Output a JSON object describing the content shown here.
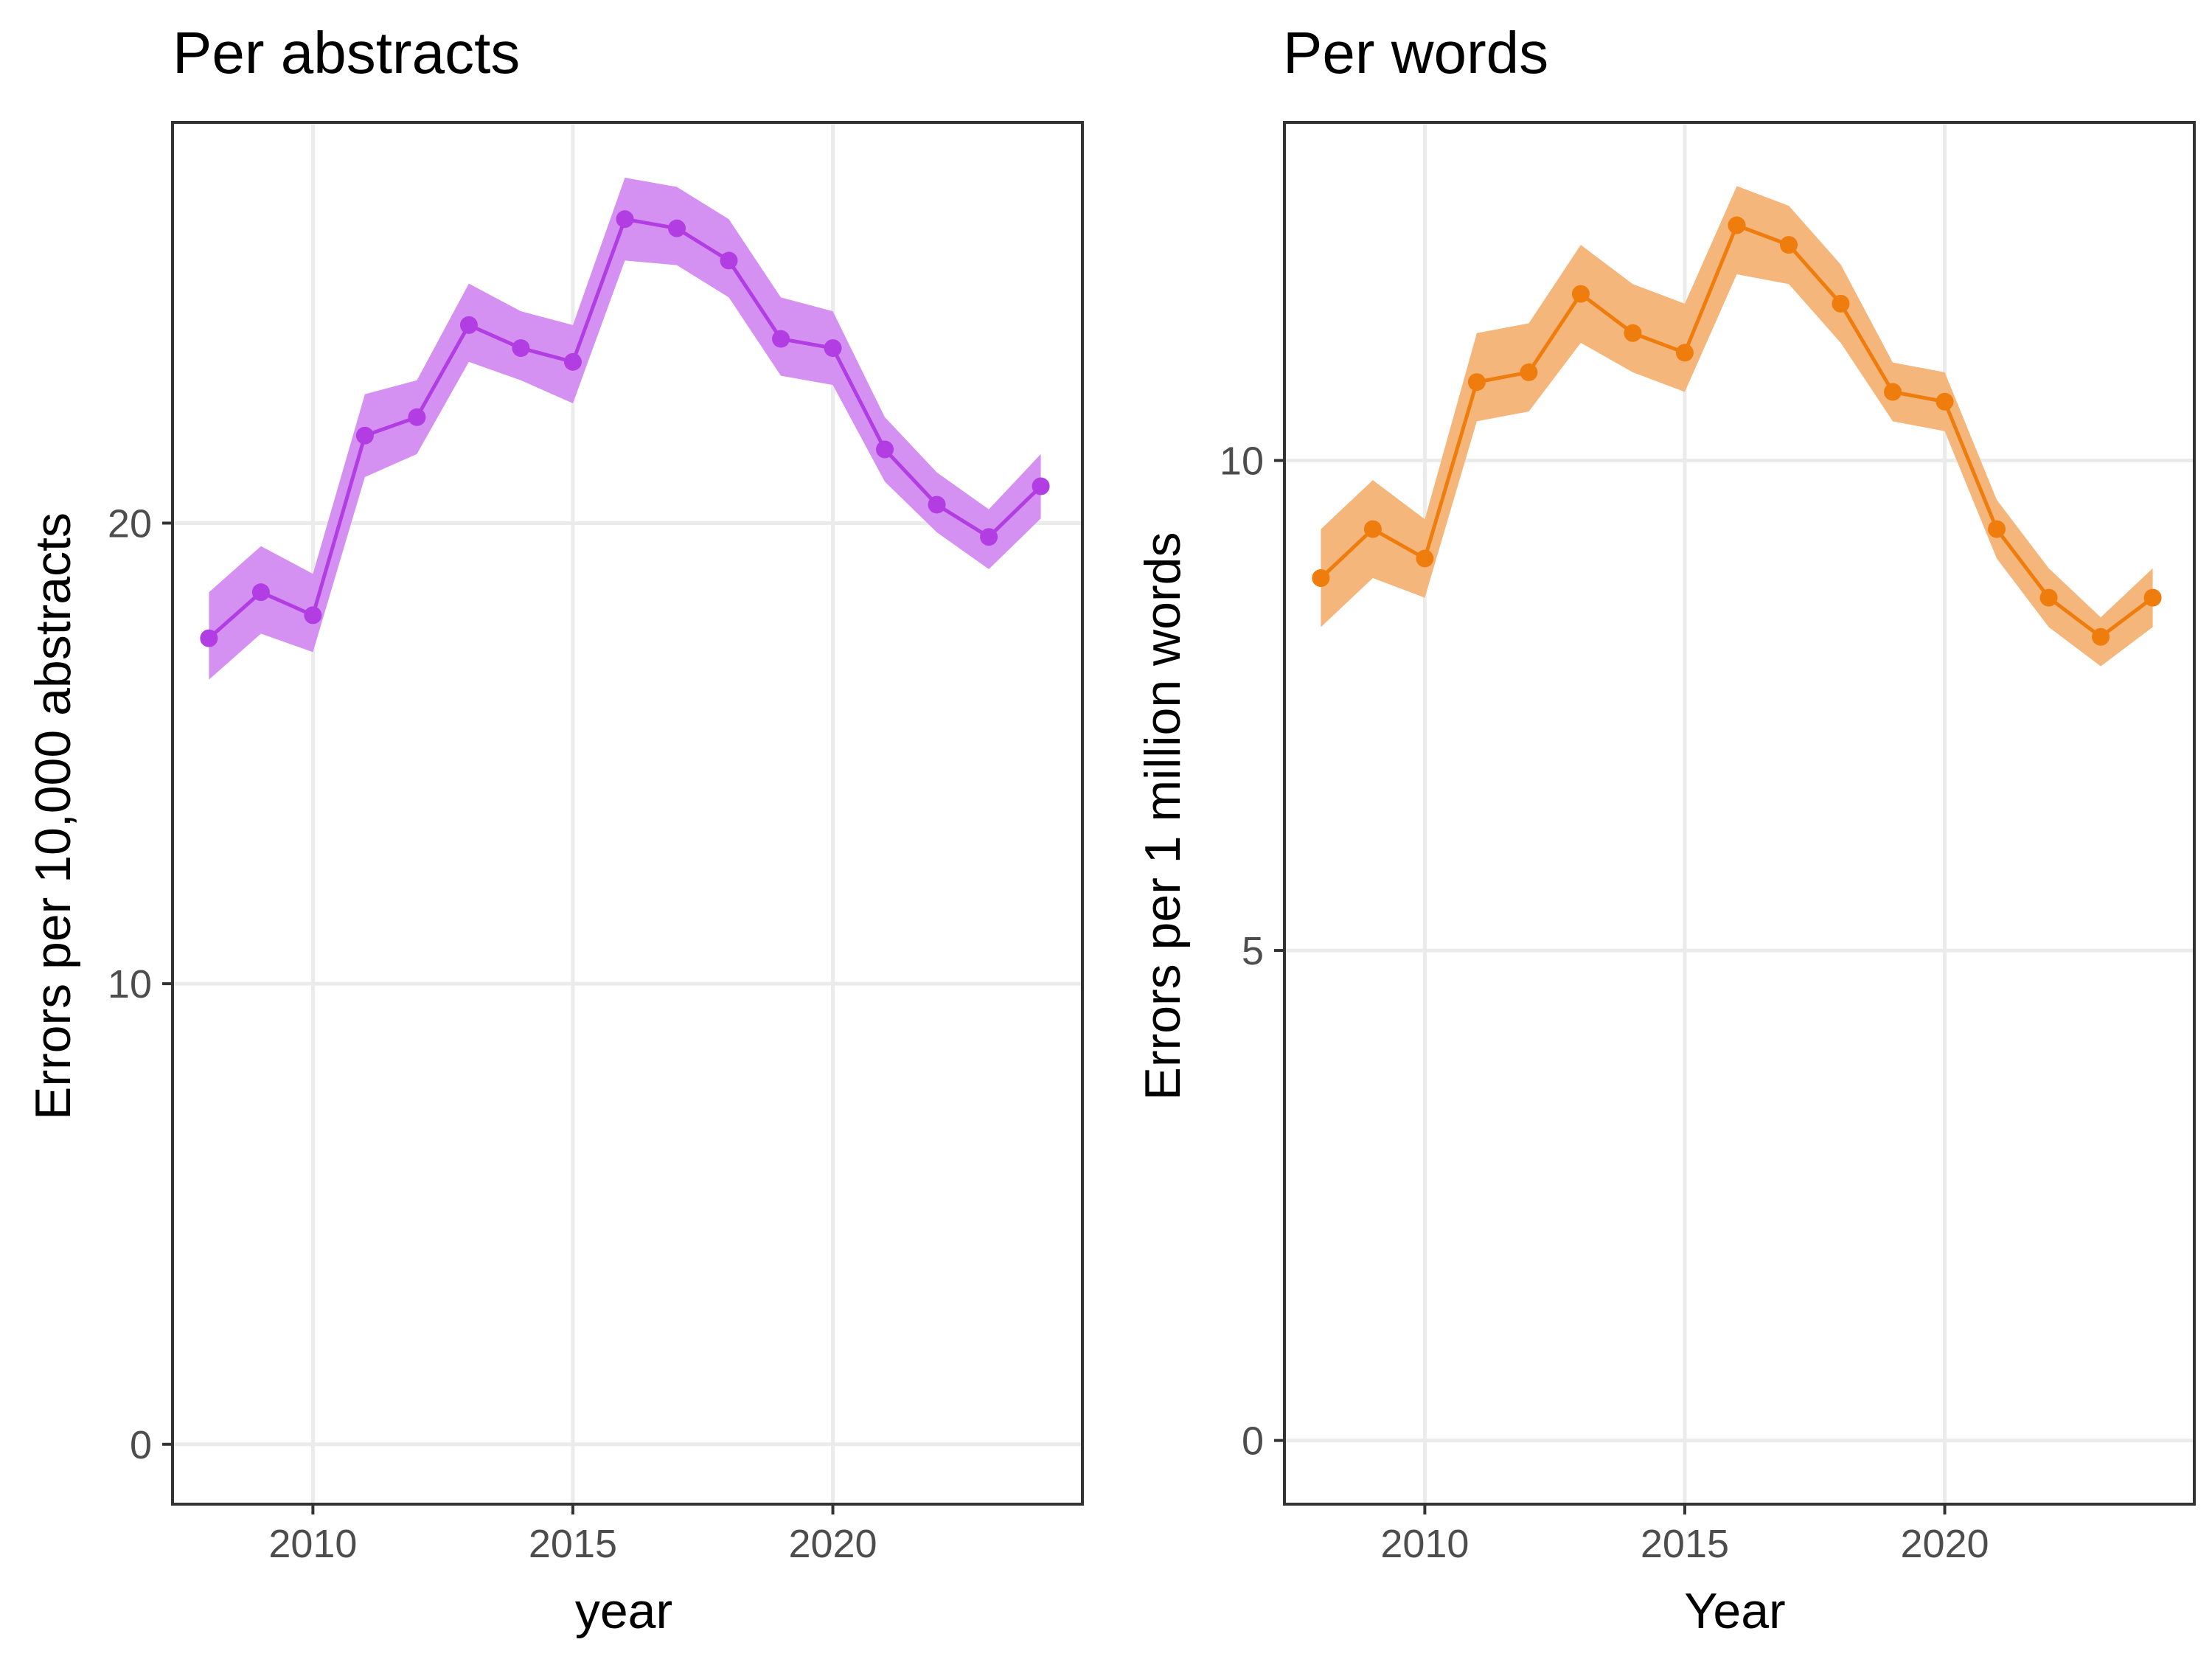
{
  "chart_data": [
    {
      "type": "line",
      "title": "Per abstracts",
      "xlabel": "year",
      "ylabel": "Errors per 10,000 abstracts",
      "xlim": [
        2007.3,
        2024.8
      ],
      "ylim": [
        -1.3,
        28.7
      ],
      "xticks": [
        2010,
        2015,
        2020
      ],
      "yticks": [
        0,
        10,
        20
      ],
      "grid": true,
      "legend": "none",
      "color": "#b23ee3",
      "band_color": "#d591f2",
      "x": [
        2008,
        2009,
        2010,
        2011,
        2012,
        2013,
        2014,
        2015,
        2016,
        2017,
        2018,
        2019,
        2020,
        2021,
        2022,
        2023,
        2024
      ],
      "series": [
        {
          "values": [
            17.5,
            18.5,
            18.0,
            21.9,
            22.3,
            24.3,
            23.8,
            23.5,
            26.6,
            26.4,
            25.7,
            24.0,
            23.8,
            21.6,
            20.4,
            19.7,
            20.8
          ],
          "lower": [
            16.6,
            17.6,
            17.2,
            21.0,
            21.5,
            23.5,
            23.1,
            22.6,
            25.7,
            25.6,
            24.9,
            23.2,
            23.0,
            20.9,
            19.8,
            19.0,
            20.1
          ],
          "upper": [
            18.5,
            19.5,
            18.9,
            22.8,
            23.1,
            25.2,
            24.6,
            24.3,
            27.5,
            27.3,
            26.6,
            24.9,
            24.6,
            22.3,
            21.1,
            20.3,
            21.5
          ]
        }
      ]
    },
    {
      "type": "line",
      "title": "Per words",
      "xlabel": "Year",
      "ylabel": "Errors per 1 million words",
      "xlim": [
        2007.3,
        2024.8
      ],
      "ylim": [
        -0.65,
        13.45
      ],
      "xticks": [
        2010,
        2015,
        2020
      ],
      "yticks": [
        0,
        5,
        10
      ],
      "grid": true,
      "legend": "none",
      "color": "#ef7d0e",
      "band_color": "#f4b67b",
      "x": [
        2008,
        2009,
        2010,
        2011,
        2012,
        2013,
        2014,
        2015,
        2016,
        2017,
        2018,
        2019,
        2020,
        2021,
        2022,
        2023,
        2024
      ],
      "series": [
        {
          "values": [
            8.8,
            9.3,
            9.0,
            10.8,
            10.9,
            11.7,
            11.3,
            11.1,
            12.4,
            12.2,
            11.6,
            10.7,
            10.6,
            9.3,
            8.6,
            8.2,
            8.6
          ],
          "lower": [
            8.3,
            8.8,
            8.6,
            10.4,
            10.5,
            11.2,
            10.9,
            10.7,
            11.9,
            11.8,
            11.2,
            10.4,
            10.3,
            9.0,
            8.3,
            7.9,
            8.3
          ],
          "upper": [
            9.3,
            9.8,
            9.4,
            11.3,
            11.4,
            12.2,
            11.8,
            11.6,
            12.8,
            12.6,
            12.0,
            11.0,
            10.9,
            9.6,
            8.9,
            8.4,
            8.9
          ]
        }
      ]
    }
  ]
}
